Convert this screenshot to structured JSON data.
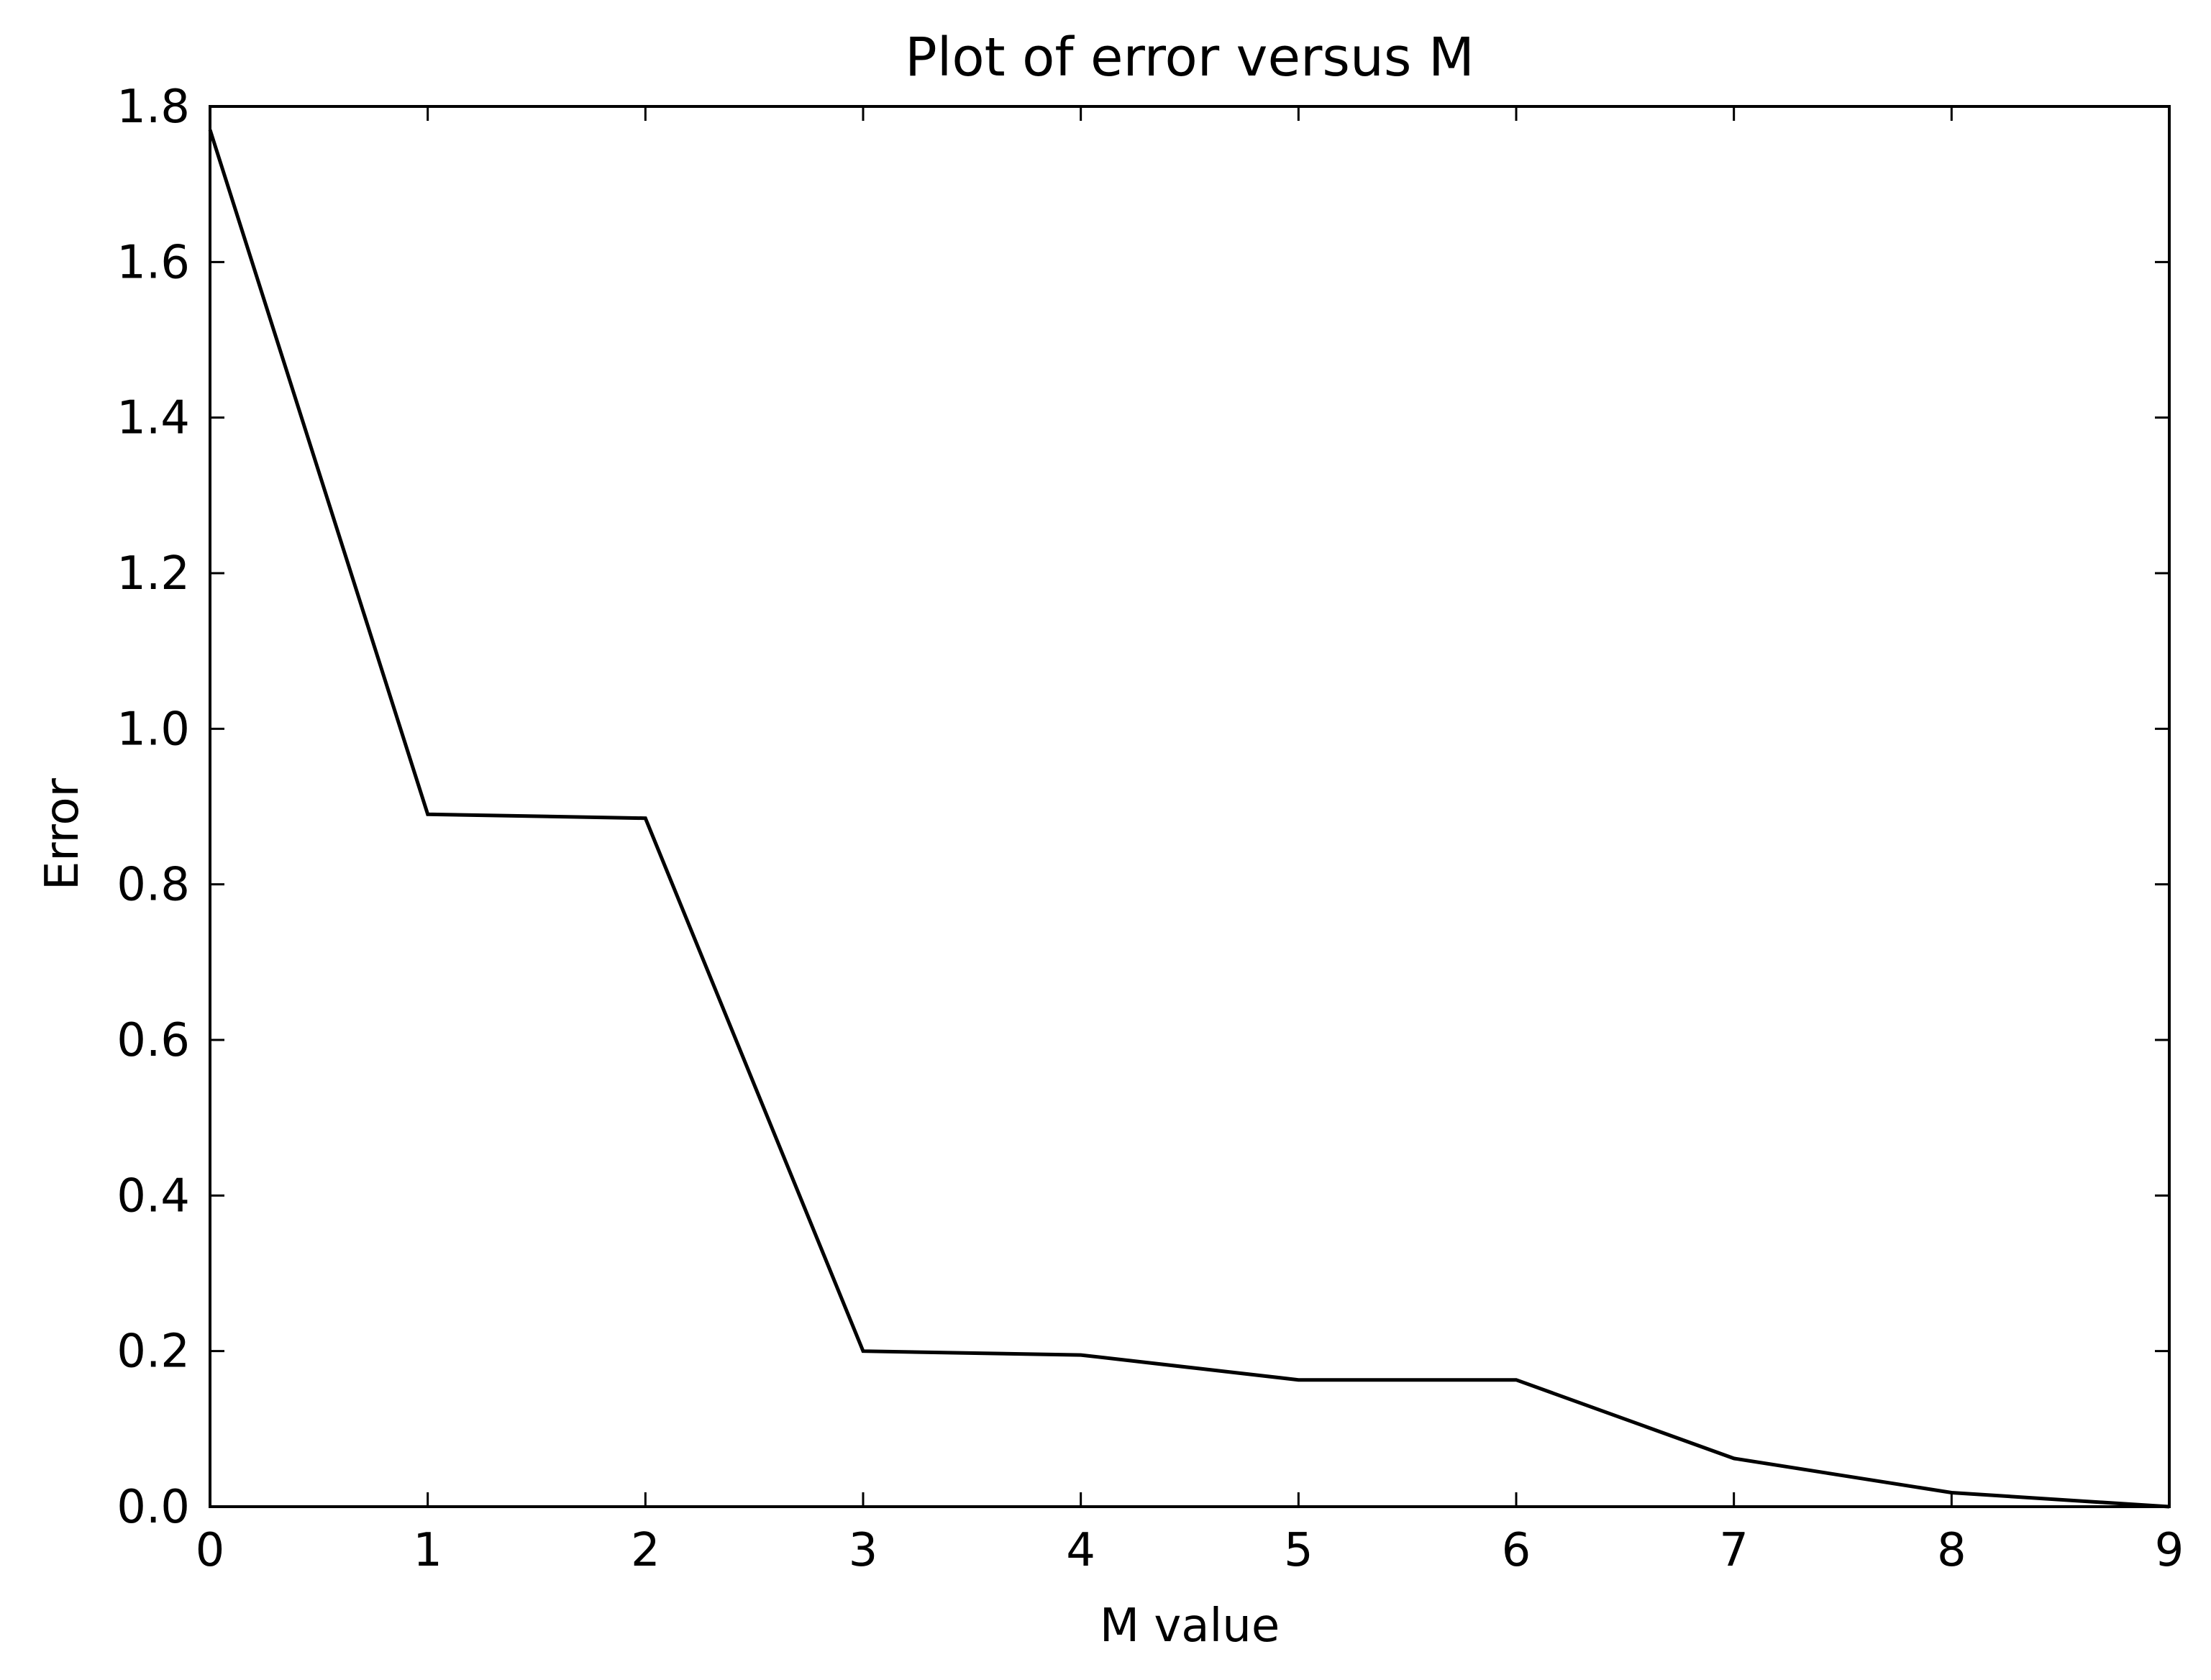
{
  "chart_data": {
    "type": "line",
    "title": "Plot of error versus M",
    "xlabel": "M value",
    "ylabel": "Error",
    "xlim": [
      0,
      9
    ],
    "ylim": [
      0,
      1.8
    ],
    "xticks": [
      "0",
      "1",
      "2",
      "3",
      "4",
      "5",
      "6",
      "7",
      "8",
      "9"
    ],
    "yticks": [
      "0.0",
      "0.2",
      "0.4",
      "0.6",
      "0.8",
      "1.0",
      "1.2",
      "1.4",
      "1.6",
      "1.8"
    ],
    "grid": false,
    "legend": "none",
    "series": [
      {
        "color": "#000000",
        "x": [
          0,
          1,
          2,
          3,
          4,
          5,
          6,
          7,
          8,
          9
        ],
        "y": [
          1.77,
          0.89,
          0.885,
          0.2,
          0.195,
          0.163,
          0.163,
          0.062,
          0.018,
          0.0
        ]
      }
    ]
  }
}
